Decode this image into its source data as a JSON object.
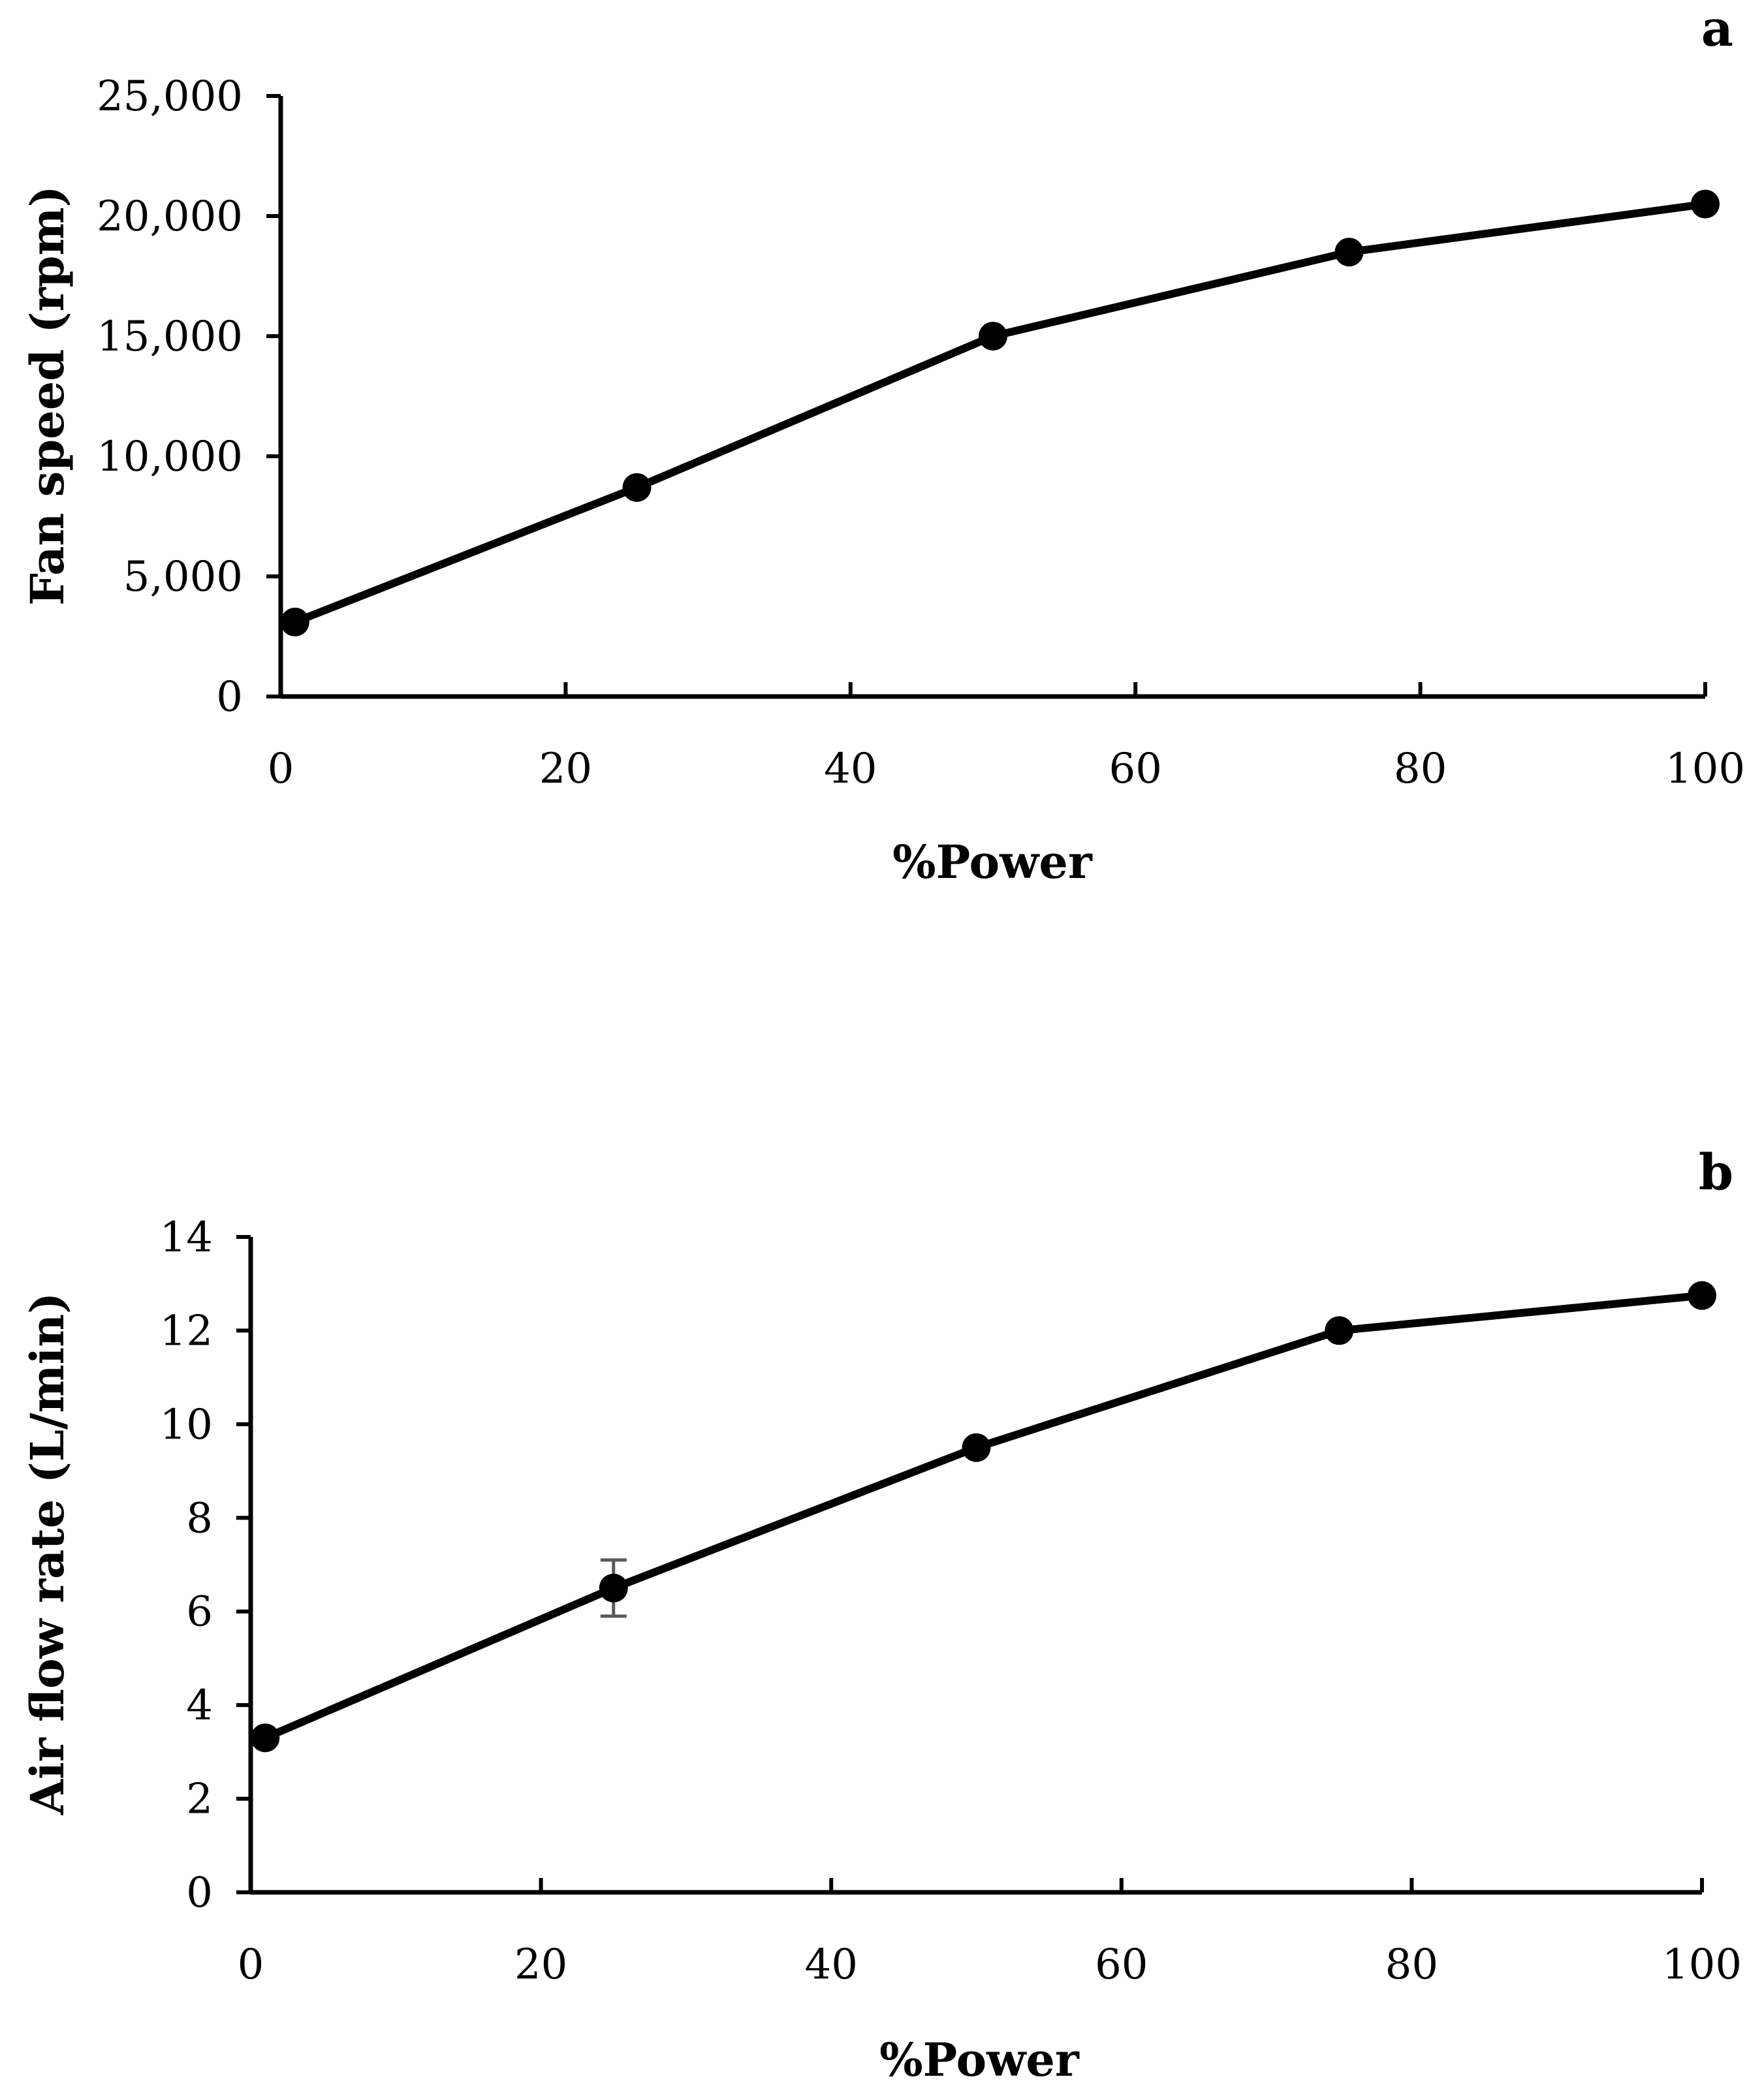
{
  "figure": {
    "colors": {
      "line": "#000000",
      "marker": "#000000",
      "error_bar": "#595959",
      "background": "#ffffff"
    }
  },
  "chart_data": [
    {
      "type": "line",
      "panel_label": "a",
      "xlabel": "%Power",
      "ylabel": "Fan speed (rpm)",
      "x": [
        1,
        25,
        50,
        75,
        100
      ],
      "series": [
        {
          "name": "Fan speed",
          "values": [
            3100,
            8700,
            15000,
            18500,
            20500
          ],
          "error": [
            0,
            0,
            0,
            0,
            0
          ]
        }
      ],
      "xlim": [
        0,
        100
      ],
      "ylim": [
        0,
        25000
      ],
      "xticks": [
        0,
        20,
        40,
        60,
        80,
        100
      ],
      "xtick_labels": [
        "0",
        "20",
        "40",
        "60",
        "80",
        "100"
      ],
      "yticks": [
        0,
        5000,
        10000,
        15000,
        20000,
        25000
      ],
      "ytick_labels": [
        "0",
        "5,000",
        "10,000",
        "15,000",
        "20,000",
        "25,000"
      ],
      "grid": false,
      "legend": "none"
    },
    {
      "type": "line",
      "panel_label": "b",
      "xlabel": "%Power",
      "ylabel": "Air flow rate (L/min)",
      "x": [
        1,
        25,
        50,
        75,
        100
      ],
      "series": [
        {
          "name": "Air flow rate",
          "values": [
            3.3,
            6.5,
            9.5,
            12.0,
            12.75
          ],
          "error": [
            0,
            0.6,
            0,
            0,
            0
          ]
        }
      ],
      "xlim": [
        0,
        100
      ],
      "ylim": [
        0,
        14
      ],
      "xticks": [
        0,
        20,
        40,
        60,
        80,
        100
      ],
      "xtick_labels": [
        "0",
        "20",
        "40",
        "60",
        "80",
        "100"
      ],
      "yticks": [
        0,
        2,
        4,
        6,
        8,
        10,
        12,
        14
      ],
      "ytick_labels": [
        "0",
        "2",
        "4",
        "6",
        "8",
        "10",
        "12",
        "14"
      ],
      "grid": false,
      "legend": "none"
    }
  ]
}
